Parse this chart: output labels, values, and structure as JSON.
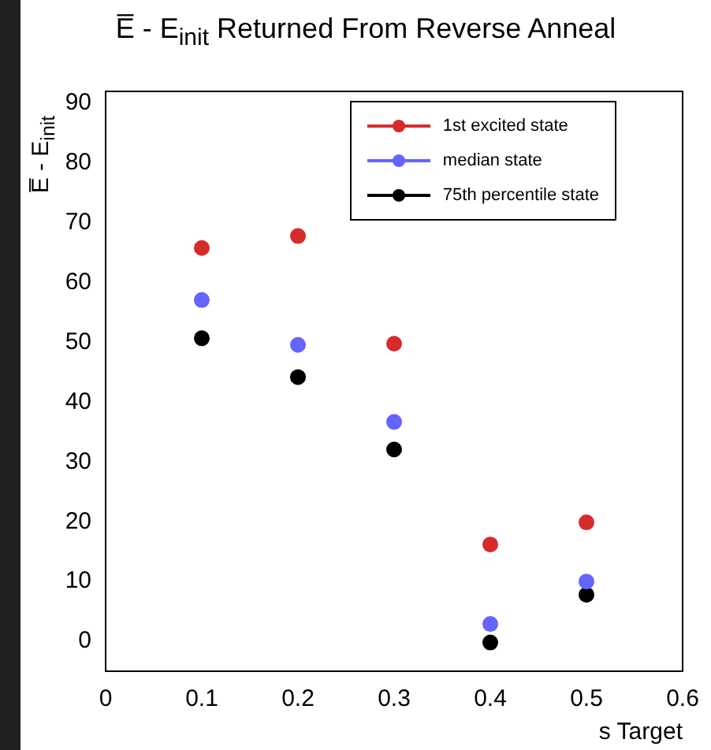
{
  "chart_data": {
    "type": "scatter",
    "title": "E̅ - E$_{init}$ Returned From Reverse Anneal",
    "xlabel": "s Target",
    "ylabel": "E̅ - E$_{init}$",
    "x": [
      0.1,
      0.2,
      0.3,
      0.4,
      0.5
    ],
    "series": [
      {
        "name": "1st excited state",
        "color": "#d62b2b",
        "values": [
          65.8,
          67.8,
          49.8,
          16.2,
          19.9
        ]
      },
      {
        "name": "median state",
        "color": "#6464ff",
        "values": [
          57.1,
          49.6,
          36.7,
          2.9,
          10.0
        ]
      },
      {
        "name": "75th percentile state",
        "color": "#000000",
        "values": [
          50.7,
          44.2,
          32.1,
          -0.2,
          7.8
        ]
      }
    ],
    "xlim": [
      0,
      0.6
    ],
    "xticks": [
      0,
      0.1,
      0.2,
      0.3,
      0.4,
      0.5,
      0.6
    ],
    "ylim": [
      -5,
      92
    ],
    "yticks": [
      0,
      10,
      20,
      30,
      40,
      50,
      60,
      70,
      80,
      90
    ],
    "grid": false,
    "legend": "top right",
    "marker": "circle"
  }
}
